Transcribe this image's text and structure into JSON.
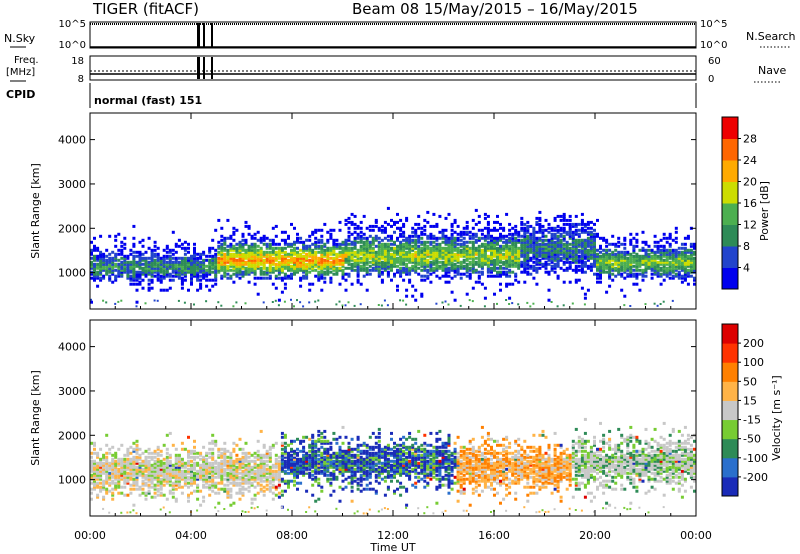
{
  "header": {
    "radar": "TIGER (fitACF)",
    "beam_range": "Beam 08  15/May/2015 – 16/May/2015"
  },
  "ops": {
    "nsky_label": "N.Sky",
    "nsky_ticks": [
      "10^5",
      "10^0"
    ],
    "nsearch_label": "N.Search",
    "nsearch_ticks": [
      "10^5",
      "10^0"
    ],
    "freq_label_1": "Freq.",
    "freq_label_2": "[MHz]",
    "freq_ticks": [
      "18",
      "8"
    ],
    "nave_label": "Nave",
    "nave_ticks": [
      "60",
      "0"
    ],
    "cpid_label": "CPID",
    "cpid_value": "normal (fast) 151"
  },
  "chart_data": [
    {
      "type": "heatmap",
      "name": "power-panel",
      "ylabel": "Slant Range [km]",
      "xlabel": "Time UT",
      "xlim": [
        0,
        24
      ],
      "ylim": [
        180,
        4600
      ],
      "x_ticks": [
        "00:00",
        "04:00",
        "08:00",
        "12:00",
        "16:00",
        "20:00",
        "00:00"
      ],
      "y_ticks": [
        1000,
        2000,
        3000,
        4000
      ],
      "colorbar": {
        "label": "Power [dB]",
        "ticks": [
          "28",
          "24",
          "20",
          "16",
          "12",
          "8",
          "4"
        ],
        "colors": [
          "#0000ee",
          "#2244cc",
          "#2e8b57",
          "#4caf50",
          "#ccdd00",
          "#ffaa00",
          "#ff6600",
          "#ee0000"
        ]
      },
      "echo_bands": [
        {
          "from": 0,
          "to": 5,
          "center": 1100,
          "width": 550,
          "level": 0.35
        },
        {
          "from": 5,
          "to": 10,
          "center": 1250,
          "width": 700,
          "level": 0.75
        },
        {
          "from": 10,
          "to": 17,
          "center": 1350,
          "width": 800,
          "level": 0.55
        },
        {
          "from": 17,
          "to": 20,
          "center": 1500,
          "width": 900,
          "level": 0.3
        },
        {
          "from": 20,
          "to": 24,
          "center": 1200,
          "width": 600,
          "level": 0.5
        }
      ]
    },
    {
      "type": "heatmap",
      "name": "velocity-panel",
      "ylabel": "Slant Range [km]",
      "xlabel": "Time UT",
      "xlim": [
        0,
        24
      ],
      "ylim": [
        180,
        4600
      ],
      "x_ticks": [
        "00:00",
        "04:00",
        "08:00",
        "12:00",
        "16:00",
        "20:00",
        "00:00"
      ],
      "y_ticks": [
        1000,
        2000,
        3000,
        4000
      ],
      "colorbar": {
        "label": "Velocity [m s⁻¹]",
        "ticks": [
          "200",
          "100",
          "50",
          "15",
          "-15",
          "-50",
          "-100",
          "-200"
        ],
        "colors": [
          "#1a2bb8",
          "#2a6fcc",
          "#2e8b57",
          "#77cc33",
          "#c8c8c8",
          "#ffb347",
          "#ff8000",
          "#ff3300",
          "#dd0000"
        ]
      },
      "echo_bands": [
        {
          "from": 0,
          "to": 7.5,
          "center": 1150,
          "kind": "grey"
        },
        {
          "from": 7.5,
          "to": 14.5,
          "center": 1350,
          "kind": "blue"
        },
        {
          "from": 14.5,
          "to": 19,
          "center": 1250,
          "kind": "orange"
        },
        {
          "from": 19,
          "to": 24,
          "center": 1350,
          "kind": "grey-green"
        }
      ]
    }
  ],
  "xaxis_title": "Time UT"
}
